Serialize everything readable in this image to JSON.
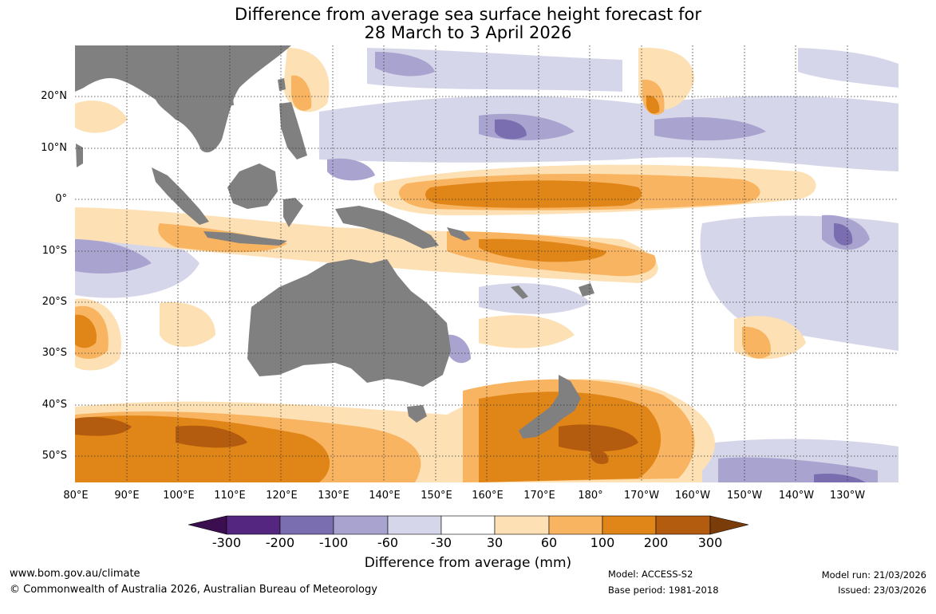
{
  "title": {
    "line1": "Difference from average sea surface height forecast for",
    "line2": "28 March to 3 April 2026"
  },
  "map": {
    "region": "Indo-Pacific, 80°E to 120°W, 30°N to 55°S",
    "lat_labels": [
      "20°N",
      "10°N",
      "0°",
      "10°S",
      "20°S",
      "30°S",
      "40°S",
      "50°S"
    ],
    "lon_labels": [
      "80°E",
      "90°E",
      "100°E",
      "110°E",
      "120°E",
      "130°E",
      "140°E",
      "150°E",
      "160°E",
      "170°E",
      "180°",
      "170°W",
      "160°W",
      "150°W",
      "140°W",
      "130°W"
    ],
    "land_color": "#808080"
  },
  "legend": {
    "title": "Difference from average (mm)",
    "tick_labels": [
      "-300",
      "-200",
      "-100",
      "-60",
      "-30",
      "30",
      "60",
      "100",
      "200",
      "300"
    ],
    "colors": [
      "#3b0f4f",
      "#54267f",
      "#7b6eb0",
      "#a9a3cf",
      "#d6d6ea",
      "#ffffff",
      "#fde0b3",
      "#f8b460",
      "#e08517",
      "#b35c0f",
      "#7a3d0a"
    ]
  },
  "footer": {
    "url": "www.bom.gov.au/climate",
    "copyright": "© Commonwealth of Australia 2026, Australian Bureau of Meteorology",
    "model": "Model: ACCESS-S2",
    "base_period": "Base period: 1981-2018",
    "model_run": "Model run: 21/03/2026",
    "issued": "Issued: 23/03/2026"
  }
}
